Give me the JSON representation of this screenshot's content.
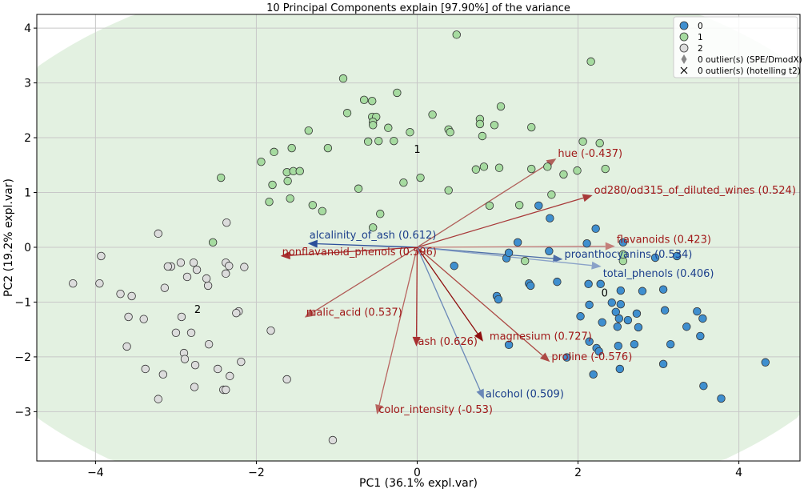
{
  "chart_data": {
    "type": "scatter",
    "title": "10 Principal Components explain [97.90%] of the variance",
    "xlabel": "PC1 (36.1% expl.var)",
    "ylabel": "PC2 (19.2% expl.var)",
    "xlim": [
      -4.73,
      4.76
    ],
    "ylim": [
      -3.9,
      4.25
    ],
    "xticks": [
      -4,
      -2,
      0,
      2,
      4
    ],
    "yticks": [
      -3,
      -2,
      -1,
      0,
      1,
      2,
      3,
      4
    ],
    "grid": true,
    "legend_position": "top-right",
    "legend": [
      {
        "label": "0",
        "marker": "circle",
        "color": "#3f8fcf"
      },
      {
        "label": "1",
        "marker": "circle",
        "color": "#a6dba0"
      },
      {
        "label": "2",
        "marker": "circle",
        "color": "#dcdcdc"
      },
      {
        "label": "0 outlier(s) (SPE/DmodX)",
        "marker": "diamond",
        "color": "#888888"
      },
      {
        "label": "0 outlier(s) (hotelling t2)",
        "marker": "cross",
        "color": "#000000"
      }
    ],
    "ellipse": {
      "center": [
        0,
        0.09
      ],
      "rx": 6.07,
      "ry": 5.1,
      "color": "#e3f1e1"
    },
    "series": [
      {
        "name": "0",
        "color": "#3f8fcf",
        "label_at": [
          2.33,
          -0.9
        ],
        "points": [
          [
            1.51,
            0.76
          ],
          [
            1.65,
            0.53
          ],
          [
            2.22,
            0.34
          ],
          [
            1.25,
            0.09
          ],
          [
            1.64,
            -0.07
          ],
          [
            2.11,
            0.07
          ],
          [
            2.56,
            0.09
          ],
          [
            0.46,
            -0.34
          ],
          [
            1.11,
            -0.2
          ],
          [
            1.14,
            -0.1
          ],
          [
            1.74,
            -0.63
          ],
          [
            1.39,
            -0.66
          ],
          [
            1.41,
            -0.7
          ],
          [
            2.96,
            -0.19
          ],
          [
            3.23,
            -0.16
          ],
          [
            2.13,
            -0.67
          ],
          [
            2.28,
            -0.67
          ],
          [
            2.53,
            -0.79
          ],
          [
            2.8,
            -0.8
          ],
          [
            3.06,
            -0.77
          ],
          [
            0.99,
            -0.89
          ],
          [
            1.01,
            -0.95
          ],
          [
            2.42,
            -1.01
          ],
          [
            2.53,
            -1.04
          ],
          [
            2.14,
            -1.05
          ],
          [
            2.03,
            -1.26
          ],
          [
            2.47,
            -1.18
          ],
          [
            2.51,
            -1.3
          ],
          [
            2.73,
            -1.21
          ],
          [
            2.62,
            -1.33
          ],
          [
            2.49,
            -1.45
          ],
          [
            3.08,
            -1.15
          ],
          [
            3.48,
            -1.17
          ],
          [
            3.35,
            -1.45
          ],
          [
            3.55,
            -1.3
          ],
          [
            3.52,
            -1.62
          ],
          [
            3.15,
            -1.77
          ],
          [
            2.3,
            -1.37
          ],
          [
            2.7,
            -1.77
          ],
          [
            2.23,
            -1.84
          ],
          [
            1.14,
            -1.78
          ],
          [
            2.75,
            -1.46
          ],
          [
            1.86,
            -2.01
          ],
          [
            2.14,
            -1.72
          ],
          [
            2.26,
            -1.9
          ],
          [
            2.5,
            -1.8
          ],
          [
            3.06,
            -2.13
          ],
          [
            2.52,
            -2.22
          ],
          [
            2.19,
            -2.32
          ],
          [
            4.33,
            -2.1
          ],
          [
            3.56,
            -2.53
          ],
          [
            3.78,
            -2.76
          ]
        ]
      },
      {
        "name": "1",
        "color": "#a6dba0",
        "label_at": [
          0,
          1.72
        ],
        "points": [
          [
            0.49,
            3.88
          ],
          [
            2.16,
            3.39
          ],
          [
            -0.92,
            3.08
          ],
          [
            -0.25,
            2.82
          ],
          [
            -0.66,
            2.69
          ],
          [
            -0.56,
            2.67
          ],
          [
            1.04,
            2.57
          ],
          [
            -0.87,
            2.45
          ],
          [
            0.19,
            2.42
          ],
          [
            -0.56,
            2.38
          ],
          [
            -0.51,
            2.38
          ],
          [
            0.78,
            2.34
          ],
          [
            -0.55,
            2.29
          ],
          [
            -0.55,
            2.23
          ],
          [
            1.42,
            2.19
          ],
          [
            -1.35,
            2.13
          ],
          [
            -0.36,
            2.18
          ],
          [
            -0.09,
            2.1
          ],
          [
            0.96,
            2.23
          ],
          [
            0.39,
            2.15
          ],
          [
            0.41,
            2.1
          ],
          [
            0.78,
            2.25
          ],
          [
            0.81,
            2.03
          ],
          [
            -0.29,
            1.94
          ],
          [
            -0.61,
            1.93
          ],
          [
            -0.48,
            1.94
          ],
          [
            2.06,
            1.93
          ],
          [
            2.27,
            1.9
          ],
          [
            -1.56,
            1.81
          ],
          [
            -1.11,
            1.81
          ],
          [
            -1.78,
            1.74
          ],
          [
            -1.94,
            1.56
          ],
          [
            2.34,
            1.43
          ],
          [
            0.83,
            1.47
          ],
          [
            0.73,
            1.42
          ],
          [
            1.62,
            1.47
          ],
          [
            1.42,
            1.43
          ],
          [
            -1.62,
            1.37
          ],
          [
            -1.54,
            1.39
          ],
          [
            -1.46,
            1.39
          ],
          [
            1.02,
            1.45
          ],
          [
            1.82,
            1.33
          ],
          [
            1.99,
            1.4
          ],
          [
            -2.44,
            1.27
          ],
          [
            -1.61,
            1.21
          ],
          [
            -1.8,
            1.14
          ],
          [
            -0.17,
            1.18
          ],
          [
            0.04,
            1.27
          ],
          [
            1.67,
            0.96
          ],
          [
            -0.73,
            1.07
          ],
          [
            0.39,
            1.04
          ],
          [
            -1.84,
            0.83
          ],
          [
            -1.58,
            0.89
          ],
          [
            -1.3,
            0.77
          ],
          [
            -1.18,
            0.66
          ],
          [
            0.9,
            0.76
          ],
          [
            -0.46,
            0.61
          ],
          [
            1.27,
            0.77
          ],
          [
            -0.55,
            0.36
          ],
          [
            -2.54,
            0.09
          ],
          [
            2.56,
            -0.25
          ],
          [
            1.34,
            -0.25
          ],
          [
            2.56,
            -0.13
          ]
        ]
      },
      {
        "name": "2",
        "color": "#dcdcdc",
        "label_at": [
          -2.73,
          -1.2
        ],
        "points": [
          [
            -3.22,
            0.25
          ],
          [
            -2.37,
            0.45
          ],
          [
            -3.93,
            -0.16
          ],
          [
            -4.28,
            -0.66
          ],
          [
            -3.95,
            -0.66
          ],
          [
            -3.06,
            -0.35
          ],
          [
            -3.1,
            -0.35
          ],
          [
            -2.94,
            -0.28
          ],
          [
            -2.78,
            -0.28
          ],
          [
            -2.86,
            -0.54
          ],
          [
            -2.38,
            -0.28
          ],
          [
            -2.34,
            -0.34
          ],
          [
            -2.38,
            -0.48
          ],
          [
            -2.15,
            -0.36
          ],
          [
            -2.6,
            -0.7
          ],
          [
            -2.62,
            -0.57
          ],
          [
            -2.74,
            -0.41
          ],
          [
            -3.14,
            -0.74
          ],
          [
            -3.69,
            -0.85
          ],
          [
            -3.55,
            -0.89
          ],
          [
            -2.22,
            -1.17
          ],
          [
            -2.25,
            -1.2
          ],
          [
            -3.59,
            -1.27
          ],
          [
            -3.4,
            -1.31
          ],
          [
            -2.93,
            -1.27
          ],
          [
            -3.0,
            -1.56
          ],
          [
            -2.81,
            -1.56
          ],
          [
            -3.61,
            -1.81
          ],
          [
            -2.59,
            -1.77
          ],
          [
            -2.9,
            -1.93
          ],
          [
            -2.89,
            -2.04
          ],
          [
            -2.76,
            -2.15
          ],
          [
            -2.48,
            -2.22
          ],
          [
            -2.33,
            -2.35
          ],
          [
            -2.19,
            -2.09
          ],
          [
            -3.38,
            -2.22
          ],
          [
            -3.16,
            -2.32
          ],
          [
            -2.77,
            -2.55
          ],
          [
            -2.41,
            -2.6
          ],
          [
            -2.38,
            -2.6
          ],
          [
            -3.22,
            -2.77
          ],
          [
            -1.82,
            -1.52
          ],
          [
            -1.62,
            -2.41
          ],
          [
            -1.05,
            -3.52
          ]
        ]
      }
    ],
    "loadings": [
      {
        "label": "hue (-0.437)",
        "x": 1.73,
        "y": 1.62,
        "color": "#b0605a",
        "text_color": "#a01818"
      },
      {
        "label": "od280/od315_of_diluted_wines (0.524)",
        "x": 2.18,
        "y": 0.95,
        "color": "#a83a3a",
        "text_color": "#a01818"
      },
      {
        "label": "flavanoids (0.423)",
        "x": 2.46,
        "y": 0.02,
        "color": "#c47f7a",
        "text_color": "#a01818"
      },
      {
        "label": "proanthocyanins (0.534)",
        "x": 1.81,
        "y": -0.22,
        "color": "#4e6ea8",
        "text_color": "#1c3f8c"
      },
      {
        "label": "total_phenols (0.406)",
        "x": 2.29,
        "y": -0.35,
        "color": "#8aa2c8",
        "text_color": "#1c3f8c"
      },
      {
        "label": "alcalinity_of_ash (0.612)",
        "x": -1.36,
        "y": 0.07,
        "color": "#2c4f9a",
        "text_color": "#1c3f8c"
      },
      {
        "label": "nonflavanoid_phenols (0.596)",
        "x": -1.7,
        "y": -0.16,
        "color": "#a83030",
        "text_color": "#a01818"
      },
      {
        "label": "malic_acid (0.537)",
        "x": -1.4,
        "y": -1.28,
        "color": "#b05a55",
        "text_color": "#a01818"
      },
      {
        "label": "ash (0.626)",
        "x": -0.01,
        "y": -1.81,
        "color": "#a83030",
        "text_color": "#a01818"
      },
      {
        "label": "magnesium (0.727)",
        "x": 0.82,
        "y": -1.72,
        "color": "#8e0f0f",
        "text_color": "#a01818"
      },
      {
        "label": "proline (-0.576)",
        "x": 1.65,
        "y": -2.09,
        "color": "#ac4a45",
        "text_color": "#a01818"
      },
      {
        "label": "alcohol (0.509)",
        "x": 0.83,
        "y": -2.77,
        "color": "#6a88b8",
        "text_color": "#1c3f8c"
      },
      {
        "label": "color_intensity (-0.53)",
        "x": -0.5,
        "y": -3.05,
        "color": "#b86560",
        "text_color": "#a01818"
      }
    ]
  }
}
